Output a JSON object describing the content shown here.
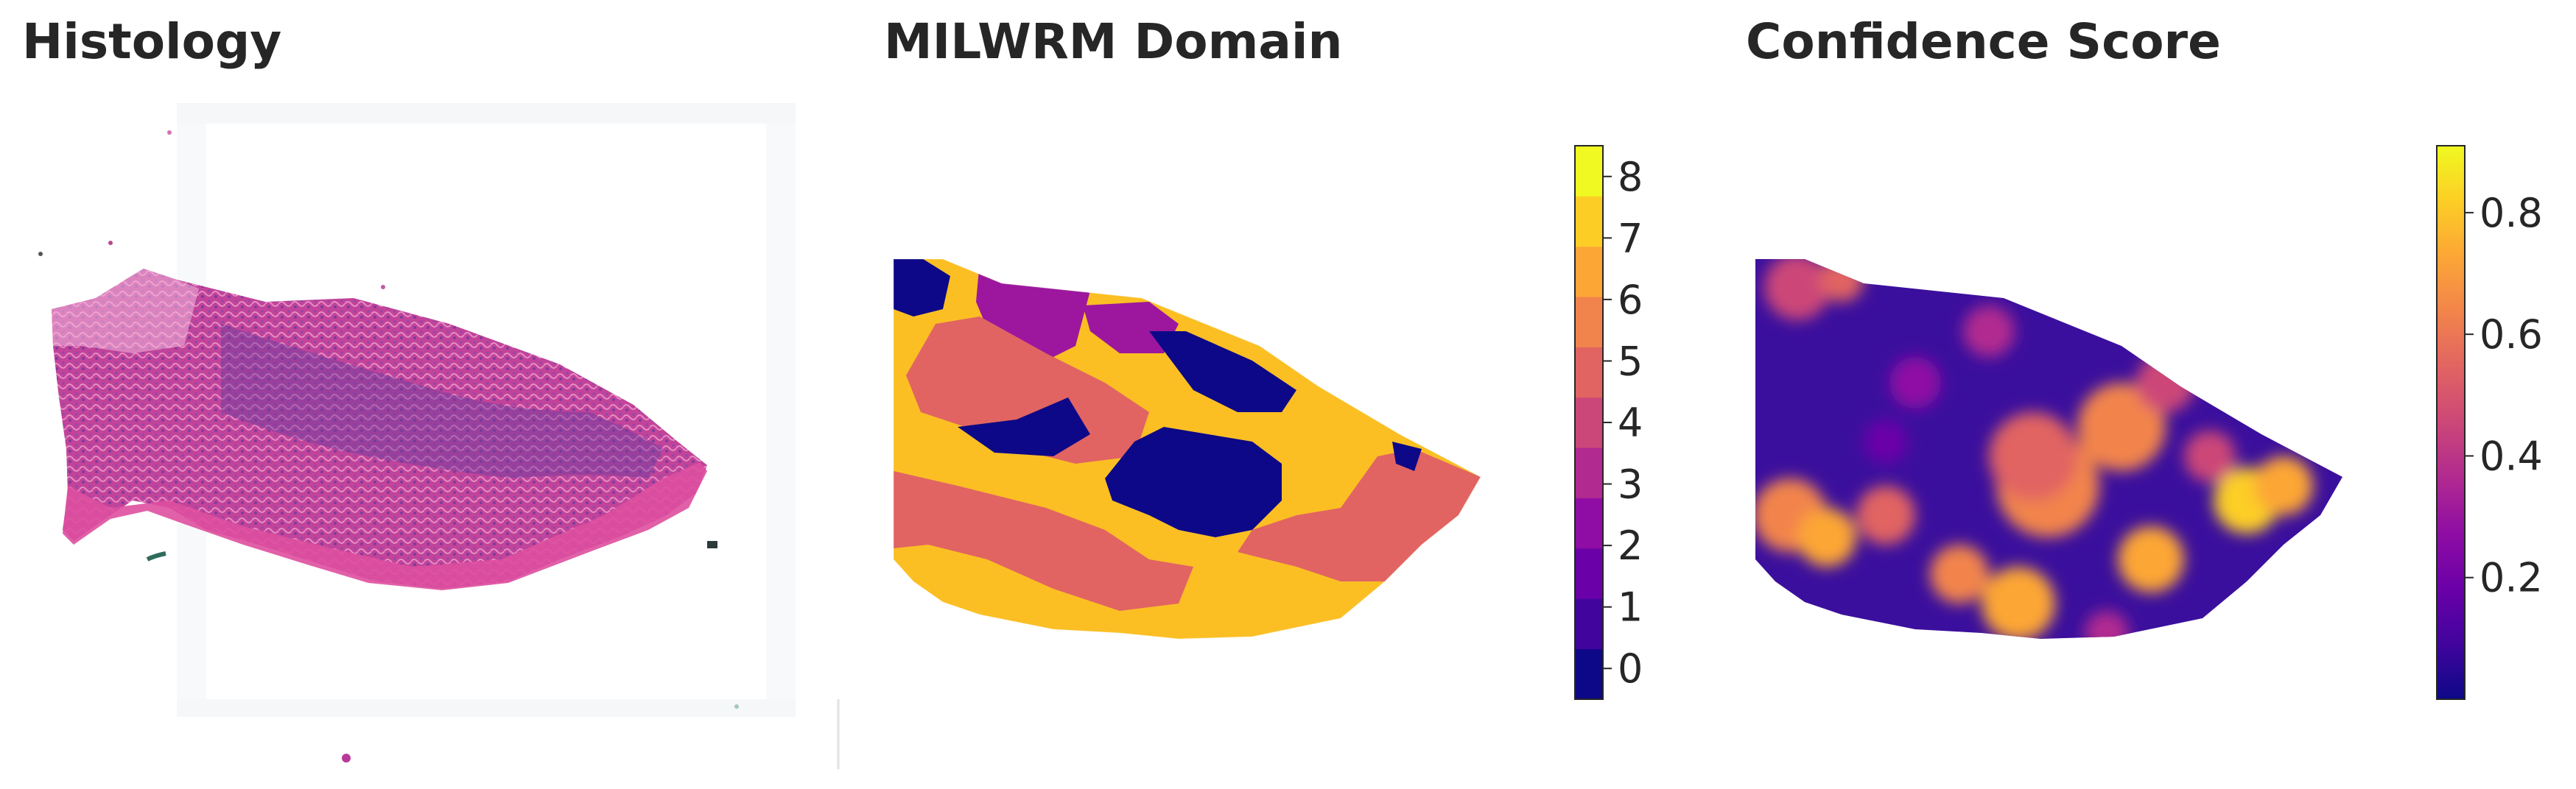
{
  "panels": {
    "histology": {
      "title": "Histology"
    },
    "domain": {
      "title": "MILWRM Domain",
      "colorbar": {
        "ticks": [
          "0",
          "1",
          "2",
          "3",
          "4",
          "5",
          "6",
          "7",
          "8"
        ],
        "colors": [
          "#0d0887",
          "#41049d",
          "#6a00a8",
          "#8f0da4",
          "#b12a90",
          "#cb4679",
          "#e16462",
          "#f1834c",
          "#fca636",
          "#fcce25",
          "#f0f921"
        ]
      },
      "domain_colors": {
        "0": "#0d0887",
        "2": "#6a00a8",
        "3": "#9c179e",
        "5": "#e16462",
        "7": "#fbbf24"
      }
    },
    "confidence": {
      "title": "Confidence Score",
      "colorbar": {
        "ticks": [
          "0.2",
          "0.4",
          "0.6",
          "0.8"
        ],
        "tick_values": [
          0.2,
          0.4,
          0.6,
          0.8
        ],
        "range": [
          0.0,
          0.91
        ],
        "colormap": "plasma"
      }
    }
  }
}
